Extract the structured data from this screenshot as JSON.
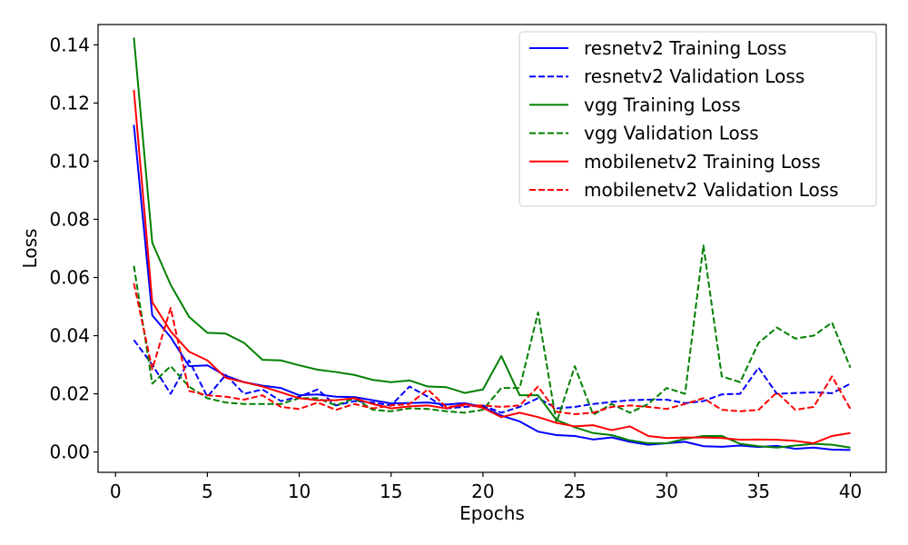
{
  "chart_data": {
    "type": "line",
    "xlabel": "Epochs",
    "ylabel": "Loss",
    "xlim": [
      -0.95,
      41.95
    ],
    "ylim": [
      -0.007,
      0.147
    ],
    "x_ticks": [
      0,
      5,
      10,
      15,
      20,
      25,
      30,
      35,
      40
    ],
    "x_tick_labels": [
      "0",
      "5",
      "10",
      "15",
      "20",
      "25",
      "30",
      "35",
      "40"
    ],
    "y_ticks": [
      0.0,
      0.02,
      0.04,
      0.06,
      0.08,
      0.1,
      0.12,
      0.14
    ],
    "y_tick_labels": [
      "0.00",
      "0.02",
      "0.04",
      "0.06",
      "0.08",
      "0.10",
      "0.12",
      "0.14"
    ],
    "grid": false,
    "legend_position": "top-right",
    "x": [
      1,
      2,
      3,
      4,
      5,
      6,
      7,
      8,
      9,
      10,
      11,
      12,
      13,
      14,
      15,
      16,
      17,
      18,
      19,
      20,
      21,
      22,
      23,
      24,
      25,
      26,
      27,
      28,
      29,
      30,
      31,
      32,
      33,
      34,
      35,
      36,
      37,
      38,
      39,
      40
    ],
    "series": [
      {
        "name": "resnetv2 Training Loss",
        "color": "#0000ff",
        "style": "solid",
        "values": [
          0.1125,
          0.047,
          0.0395,
          0.0295,
          0.0298,
          0.0262,
          0.024,
          0.0228,
          0.022,
          0.0195,
          0.0198,
          0.019,
          0.0189,
          0.0178,
          0.0167,
          0.0168,
          0.017,
          0.0163,
          0.0168,
          0.0155,
          0.0125,
          0.0105,
          0.007,
          0.0058,
          0.0055,
          0.0043,
          0.005,
          0.0035,
          0.0025,
          0.003,
          0.0035,
          0.002,
          0.0018,
          0.0022,
          0.0017,
          0.0021,
          0.0011,
          0.0015,
          0.0008,
          0.0007
        ]
      },
      {
        "name": "resnetv2 Validation Loss",
        "color": "#0000ff",
        "style": "dashed",
        "values": [
          0.0385,
          0.03,
          0.02,
          0.0315,
          0.019,
          0.0265,
          0.02,
          0.0215,
          0.0175,
          0.019,
          0.0215,
          0.016,
          0.0175,
          0.017,
          0.016,
          0.0225,
          0.019,
          0.015,
          0.0155,
          0.016,
          0.0135,
          0.0155,
          0.0185,
          0.015,
          0.0155,
          0.0165,
          0.0172,
          0.0178,
          0.018,
          0.018,
          0.0168,
          0.0175,
          0.0198,
          0.02,
          0.029,
          0.02,
          0.0203,
          0.0205,
          0.0202,
          0.0235
        ]
      },
      {
        "name": "vgg Training Loss",
        "color": "#008000",
        "style": "solid",
        "values": [
          0.1425,
          0.072,
          0.0575,
          0.0465,
          0.041,
          0.0407,
          0.0375,
          0.0317,
          0.0315,
          0.0298,
          0.0283,
          0.0275,
          0.0265,
          0.0248,
          0.024,
          0.0246,
          0.0225,
          0.0223,
          0.0203,
          0.0215,
          0.033,
          0.0195,
          0.0195,
          0.011,
          0.0085,
          0.0065,
          0.0058,
          0.004,
          0.003,
          0.003,
          0.0045,
          0.0055,
          0.0055,
          0.0028,
          0.002,
          0.0015,
          0.0022,
          0.0028,
          0.0025,
          0.0015
        ]
      },
      {
        "name": "vgg Validation Loss",
        "color": "#008000",
        "style": "dashed",
        "values": [
          0.064,
          0.0235,
          0.0295,
          0.0225,
          0.0185,
          0.017,
          0.0165,
          0.0165,
          0.0165,
          0.0185,
          0.0185,
          0.016,
          0.0185,
          0.0145,
          0.014,
          0.015,
          0.0148,
          0.014,
          0.0135,
          0.0145,
          0.022,
          0.022,
          0.048,
          0.01,
          0.0295,
          0.0128,
          0.0165,
          0.0135,
          0.0165,
          0.022,
          0.02,
          0.071,
          0.026,
          0.024,
          0.0375,
          0.0428,
          0.039,
          0.04,
          0.0445,
          0.029
        ]
      },
      {
        "name": "mobilenetv2 Training Loss",
        "color": "#ff0000",
        "style": "solid",
        "values": [
          0.1245,
          0.0515,
          0.0415,
          0.0345,
          0.0315,
          0.0255,
          0.024,
          0.0225,
          0.0205,
          0.0185,
          0.0178,
          0.0178,
          0.0185,
          0.0165,
          0.015,
          0.0157,
          0.016,
          0.015,
          0.0165,
          0.0152,
          0.012,
          0.0135,
          0.012,
          0.01,
          0.0088,
          0.0092,
          0.0075,
          0.0088,
          0.0055,
          0.0048,
          0.005,
          0.005,
          0.0048,
          0.0042,
          0.0043,
          0.0042,
          0.0038,
          0.003,
          0.0055,
          0.0065
        ]
      },
      {
        "name": "mobilenetv2 Validation Loss",
        "color": "#ff0000",
        "style": "dashed",
        "values": [
          0.058,
          0.0285,
          0.0495,
          0.021,
          0.0195,
          0.019,
          0.018,
          0.0195,
          0.0155,
          0.0148,
          0.017,
          0.0145,
          0.0165,
          0.015,
          0.016,
          0.0165,
          0.0215,
          0.0155,
          0.016,
          0.016,
          0.0155,
          0.016,
          0.0225,
          0.0138,
          0.013,
          0.0135,
          0.0155,
          0.016,
          0.0155,
          0.0148,
          0.0165,
          0.0185,
          0.0145,
          0.014,
          0.0145,
          0.0205,
          0.0145,
          0.0155,
          0.026,
          0.0148
        ]
      }
    ]
  }
}
